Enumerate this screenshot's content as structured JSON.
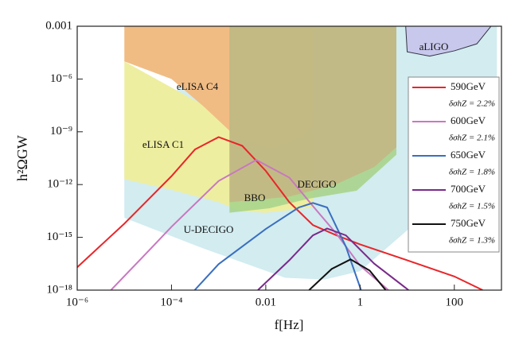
{
  "chart_data": {
    "type": "line",
    "xlabel": "f[Hz]",
    "ylabel": "h²ΩGW",
    "xscale": "log",
    "yscale": "log",
    "xlim": [
      1e-06,
      1000
    ],
    "ylim": [
      1e-18,
      0.001
    ],
    "xticks": [
      {
        "value": 1e-06,
        "label": "10⁻⁶"
      },
      {
        "value": 0.0001,
        "label": "10⁻⁴"
      },
      0.01,
      1,
      100
    ],
    "yticks": [
      0.001,
      {
        "value": 1e-06,
        "label": "10⁻⁶"
      },
      {
        "value": 1e-09,
        "label": "10⁻⁹"
      },
      {
        "value": 1e-12,
        "label": "10⁻¹²"
      },
      {
        "value": 1e-15,
        "label": "10⁻¹⁵"
      },
      {
        "value": 1e-18,
        "label": "10⁻¹⁸"
      }
    ],
    "legend": "right",
    "regions": [
      {
        "name": "U-DECIGO",
        "color": "#d2ecf0",
        "x": [
          1e-05,
          1e-05,
          0.00037,
          0.026,
          0.18,
          1,
          10,
          100,
          800,
          800,
          5.9,
          0.003
        ],
        "y": [
          2.5e-10,
          1.3e-14,
          3e-16,
          5e-18,
          4e-18,
          1.2e-17,
          2.5e-15,
          4e-13,
          6e-12,
          0.001,
          0.001,
          0.001
        ]
      },
      {
        "name": "eLISA C1",
        "color": "#eeeea0",
        "x": [
          1e-05,
          0.0005,
          0.1,
          0.1,
          0.01,
          0.003,
          0.001,
          0.0001,
          1e-05
        ],
        "y": [
          1e-05,
          3e-08,
          1e-09,
          5e-14,
          2.5e-14,
          3e-14,
          1e-13,
          5e-13,
          2e-12
        ]
      },
      {
        "name": "eLISA C4",
        "color": "#f0bc84",
        "x": [
          1e-05,
          0.1,
          0.1,
          0.05,
          0.012,
          0.0026,
          0.0005,
          0.0001,
          1e-05
        ],
        "y": [
          0.001,
          0.001,
          2e-09,
          4e-10,
          1.3e-10,
          4e-10,
          2.5e-08,
          1e-06,
          1e-05
        ]
      },
      {
        "name": "BBO",
        "color": "#a8d48c",
        "x": [
          0.0017,
          5.9,
          5.9,
          0.85,
          0.083,
          0.012,
          0.0017
        ],
        "y": [
          0.001,
          0.001,
          5e-11,
          4.5e-13,
          1.6e-13,
          4.5e-14,
          2.5e-14
        ]
      },
      {
        "name": "DECIGO",
        "color": "#c8b080",
        "x": [
          0.0017,
          5.9,
          5.9,
          2,
          0.3,
          0.03,
          0.0017
        ],
        "y": [
          0.001,
          0.001,
          1.3e-10,
          1e-11,
          1e-12,
          2e-13,
          1e-13
        ]
      },
      {
        "name": "aLIGO",
        "color": "#c8c8ec",
        "x": [
          9.3,
          10,
          30,
          100,
          300,
          600
        ],
        "y": [
          0.001,
          3.5e-05,
          2e-05,
          4e-05,
          0.0001,
          0.001
        ]
      }
    ],
    "series": [
      {
        "name": "590GeV",
        "label": "δσhZ = 2.2%",
        "color": "#e8262a",
        "x": [
          1e-06,
          1e-05,
          0.0001,
          0.000316,
          0.001,
          0.00316,
          0.01,
          0.0316,
          0.1,
          0.316,
          1,
          10,
          100,
          400
        ],
        "values": [
          2e-17,
          6e-15,
          3e-12,
          1e-10,
          5e-10,
          1.6e-10,
          6e-12,
          1e-13,
          5e-15,
          1.3e-15,
          4e-16,
          5e-17,
          6e-18,
          1e-18
        ]
      },
      {
        "name": "600GeV",
        "label": "δσhZ = 2.1%",
        "color": "#c878c0",
        "x": [
          5.2e-06,
          3.2e-05,
          0.0001,
          0.001,
          0.0063,
          0.0316,
          0.1,
          0.316,
          1,
          4
        ],
        "values": [
          1e-18,
          1.6e-16,
          4e-15,
          1.6e-12,
          2.5e-11,
          2.5e-12,
          6e-14,
          1.6e-15,
          2.5e-17,
          1e-18
        ]
      },
      {
        "name": "650GeV",
        "label": "δσhZ = 1.8%",
        "color": "#3a6fc0",
        "x": [
          0.00031,
          0.001,
          0.01,
          0.05,
          0.1,
          0.2,
          0.5,
          1.05
        ],
        "values": [
          1e-18,
          3e-17,
          3e-15,
          5e-14,
          9e-14,
          5e-14,
          3e-16,
          1e-18
        ]
      },
      {
        "name": "700GeV",
        "label": "δσhZ = 1.5%",
        "color": "#7a2a8a",
        "x": [
          0.0068,
          0.0316,
          0.1,
          0.2,
          0.5,
          2,
          10.7
        ],
        "values": [
          1e-18,
          5e-17,
          1.3e-15,
          3.2e-15,
          1.3e-15,
          3.2e-17,
          1e-18
        ]
      },
      {
        "name": "750GeV",
        "label": "δσhZ = 1.3%",
        "color": "#111111",
        "x": [
          0.083,
          0.25,
          0.63,
          1.6,
          3.5
        ],
        "values": [
          1e-18,
          1.6e-17,
          5.6e-17,
          1.3e-17,
          1e-18
        ]
      }
    ]
  }
}
